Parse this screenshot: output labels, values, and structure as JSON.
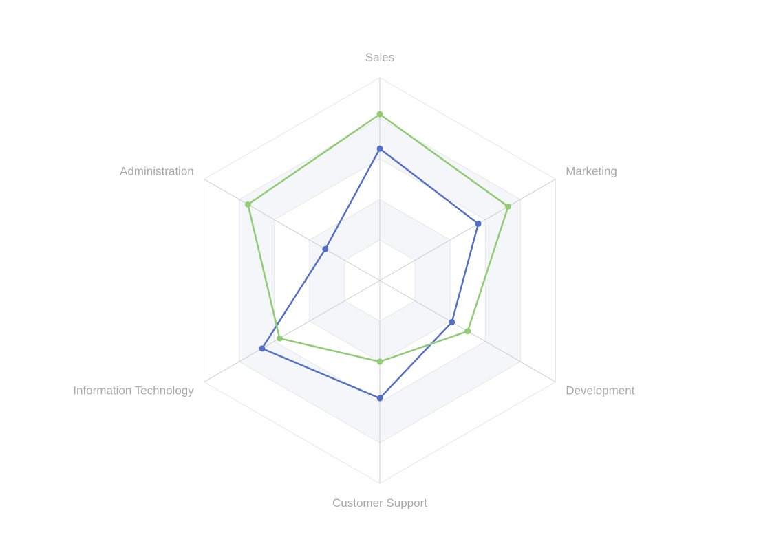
{
  "chart_data": {
    "type": "radar",
    "title": "",
    "indicators": [
      {
        "name": "Sales",
        "max": 100
      },
      {
        "name": "Marketing",
        "max": 100
      },
      {
        "name": "Development",
        "max": 100
      },
      {
        "name": "Customer Support",
        "max": 100
      },
      {
        "name": "Information Technology",
        "max": 100
      },
      {
        "name": "Administration",
        "max": 100
      }
    ],
    "series": [
      {
        "color": "#5470c6",
        "values": [
          65,
          56,
          41,
          58,
          67,
          31
        ]
      },
      {
        "color": "#91cc75",
        "values": [
          82,
          73,
          50,
          40,
          57,
          75
        ]
      }
    ],
    "split_number": 5,
    "split_area_colors": [
      "#ffffff",
      "#f5f6fa"
    ],
    "split_line_color": "#e6e6e6",
    "axis_line_color": "#cccccc",
    "label_color": "#a9a9a9"
  }
}
